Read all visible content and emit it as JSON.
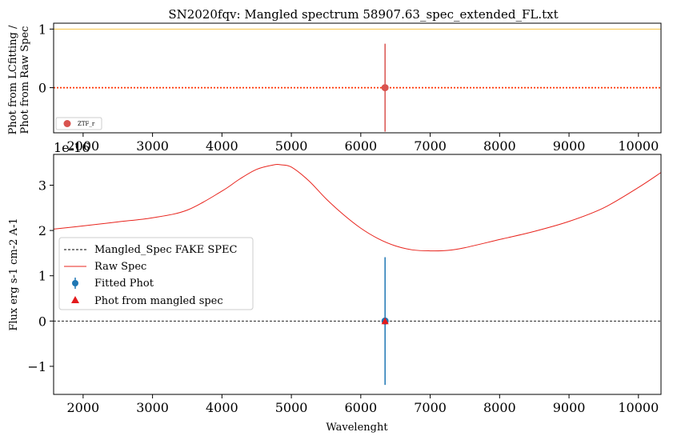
{
  "chart_data": [
    {
      "type": "scatter",
      "title": "SN2020fqv: Mangled spectrum 58907.63_spec_extended_FL.txt",
      "xlabel": "",
      "ylabel_line1": "Phot from LCfitting /",
      "ylabel_line2": "Phot from Raw Spec",
      "xlim": [
        1575,
        10325
      ],
      "ylim": [
        -0.77,
        1.1
      ],
      "offset_label": "1e-16",
      "xticks": [
        "2000",
        "3000",
        "4000",
        "5000",
        "6000",
        "7000",
        "8000",
        "9000",
        "10000"
      ],
      "xtick_values": [
        2000,
        3000,
        4000,
        5000,
        6000,
        7000,
        8000,
        9000,
        10000
      ],
      "yticks": [
        "0",
        "1"
      ],
      "ytick_values": [
        0,
        1
      ],
      "hlines": [
        {
          "y": 1,
          "color": "#f5c242",
          "style": "solid"
        },
        {
          "y": 0,
          "color": "#ff3300",
          "style": "dotted"
        }
      ],
      "points": [
        {
          "name": "ZTF_r",
          "x": 6350,
          "y": 0.0,
          "yerr": 0.75,
          "color": "#d9534f"
        }
      ],
      "legend": {
        "position": "lower-left",
        "entries": [
          "ZTF_r"
        ]
      }
    },
    {
      "type": "line",
      "title": "",
      "xlabel": "Wavelenght",
      "ylabel": "Flux erg s-1 cm-2 A-1",
      "xlim": [
        1575,
        10325
      ],
      "ylim": [
        -1.62,
        3.68
      ],
      "xticks": [
        "2000",
        "3000",
        "4000",
        "5000",
        "6000",
        "7000",
        "8000",
        "9000",
        "10000"
      ],
      "xtick_values": [
        2000,
        3000,
        4000,
        5000,
        6000,
        7000,
        8000,
        9000,
        10000
      ],
      "yticks": [
        "−1",
        "0",
        "1",
        "2",
        "3"
      ],
      "ytick_values": [
        -1,
        0,
        1,
        2,
        3
      ],
      "series": [
        {
          "name": "Mangled_Spec FAKE SPEC",
          "color": "#000000",
          "style": "dashed",
          "x": [
            1575,
            10325
          ],
          "y": [
            0,
            0
          ]
        },
        {
          "name": "Raw Spec",
          "color": "#e8241d",
          "style": "solid",
          "x": [
            1575,
            2000,
            2500,
            3000,
            3500,
            4000,
            4250,
            4500,
            4750,
            4850,
            5000,
            5250,
            5500,
            5750,
            6000,
            6250,
            6500,
            6750,
            7000,
            7250,
            7500,
            8000,
            8500,
            9000,
            9500,
            10000,
            10325
          ],
          "y": [
            2.03,
            2.1,
            2.19,
            2.28,
            2.45,
            2.87,
            3.13,
            3.35,
            3.45,
            3.45,
            3.4,
            3.1,
            2.7,
            2.35,
            2.05,
            1.82,
            1.66,
            1.57,
            1.55,
            1.56,
            1.62,
            1.8,
            1.98,
            2.2,
            2.5,
            2.95,
            3.28
          ]
        }
      ],
      "points": [
        {
          "name": "Fitted Phot",
          "x": 6350,
          "y": 0.0,
          "yerr": 1.41,
          "color": "#1f77b4",
          "marker": "circle"
        },
        {
          "name": "Phot from mangled spec",
          "x": 6350,
          "y": 0.0,
          "color": "#e31a1c",
          "marker": "triangle"
        }
      ],
      "legend": {
        "position": "center-left",
        "entries": [
          "Mangled_Spec FAKE SPEC",
          "Raw Spec",
          "Fitted Phot",
          "Phot from mangled spec"
        ]
      }
    }
  ]
}
